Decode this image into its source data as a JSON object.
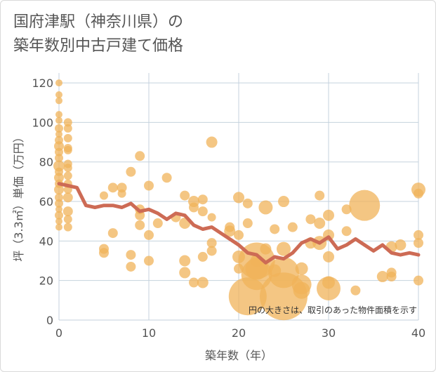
{
  "title_line1": "国府津駅（神奈川県）の",
  "title_line2": "築年数別中古戸建て価格",
  "chart_data": {
    "type": "scatter",
    "xlabel": "築年数（年）",
    "ylabel": "坪（3.3㎡）単価（万円）",
    "xlim": [
      0,
      40
    ],
    "ylim": [
      0,
      125
    ],
    "xticks": [
      0,
      10,
      20,
      30,
      40
    ],
    "yticks": [
      0,
      20,
      40,
      60,
      80,
      100,
      120
    ],
    "grid": true,
    "note": "円の大きさは、取引のあった物件面積を示す",
    "colors": {
      "bubble": "#f0b35a",
      "line": "#cd6b55",
      "grid": "#c5d2dd",
      "axis_text": "#555555"
    },
    "trend": [
      [
        0,
        69
      ],
      [
        1,
        68
      ],
      [
        2,
        67
      ],
      [
        3,
        58
      ],
      [
        4,
        57
      ],
      [
        5,
        58
      ],
      [
        6,
        58
      ],
      [
        7,
        57
      ],
      [
        8,
        59
      ],
      [
        9,
        55
      ],
      [
        10,
        56
      ],
      [
        11,
        54
      ],
      [
        12,
        51
      ],
      [
        13,
        54
      ],
      [
        14,
        53
      ],
      [
        15,
        48
      ],
      [
        16,
        46
      ],
      [
        17,
        47
      ],
      [
        18,
        44
      ],
      [
        19,
        41
      ],
      [
        20,
        38
      ],
      [
        21,
        34
      ],
      [
        22,
        33
      ],
      [
        23,
        29
      ],
      [
        24,
        32
      ],
      [
        25,
        31
      ],
      [
        26,
        34
      ],
      [
        27,
        39
      ],
      [
        28,
        41
      ],
      [
        29,
        39
      ],
      [
        30,
        42
      ],
      [
        31,
        36
      ],
      [
        32,
        38
      ],
      [
        33,
        41
      ],
      [
        34,
        38
      ],
      [
        35,
        35
      ],
      [
        36,
        38
      ],
      [
        37,
        34
      ],
      [
        38,
        33
      ],
      [
        39,
        34
      ],
      [
        40,
        33
      ]
    ],
    "points": [
      [
        0,
        120,
        5
      ],
      [
        0,
        114,
        5
      ],
      [
        0,
        111,
        5
      ],
      [
        0,
        104,
        5
      ],
      [
        0,
        101,
        5
      ],
      [
        0,
        97,
        6
      ],
      [
        0,
        94,
        5
      ],
      [
        0,
        91,
        6
      ],
      [
        0,
        88,
        7
      ],
      [
        0,
        85,
        6
      ],
      [
        0,
        82,
        6
      ],
      [
        0,
        78,
        8
      ],
      [
        0,
        75,
        6
      ],
      [
        0,
        72,
        7
      ],
      [
        0,
        69,
        6
      ],
      [
        0,
        66,
        7
      ],
      [
        0,
        62,
        6
      ],
      [
        0,
        59,
        6
      ],
      [
        0,
        56,
        5
      ],
      [
        0,
        53,
        6
      ],
      [
        0,
        50,
        5
      ],
      [
        0,
        47,
        5
      ],
      [
        1,
        100,
        6
      ],
      [
        1,
        97,
        6
      ],
      [
        1,
        92,
        6
      ],
      [
        1,
        87,
        6
      ],
      [
        1,
        86,
        6
      ],
      [
        1,
        79,
        6
      ],
      [
        1,
        77,
        6
      ],
      [
        1,
        73,
        6
      ],
      [
        1,
        69,
        6
      ],
      [
        1,
        66,
        6
      ],
      [
        1,
        62,
        7
      ],
      [
        1,
        55,
        7
      ],
      [
        1,
        51,
        6
      ],
      [
        1,
        47,
        6
      ],
      [
        5,
        36,
        7
      ],
      [
        5,
        34,
        7
      ],
      [
        5,
        63,
        6
      ],
      [
        6,
        67,
        7
      ],
      [
        6,
        44,
        7
      ],
      [
        7,
        67,
        7
      ],
      [
        7,
        64,
        6
      ],
      [
        8,
        75,
        7
      ],
      [
        8,
        33,
        7
      ],
      [
        8,
        27,
        7
      ],
      [
        9,
        83,
        7
      ],
      [
        9,
        56,
        7
      ],
      [
        9,
        53,
        7
      ],
      [
        9,
        48,
        7
      ],
      [
        10,
        68,
        7
      ],
      [
        10,
        43,
        7
      ],
      [
        10,
        30,
        7
      ],
      [
        11,
        49,
        7
      ],
      [
        12,
        72,
        7
      ],
      [
        13,
        52,
        7
      ],
      [
        14,
        63,
        7
      ],
      [
        14,
        49,
        8
      ],
      [
        14,
        30,
        8
      ],
      [
        14,
        24,
        8
      ],
      [
        15,
        60,
        8
      ],
      [
        15,
        57,
        7
      ],
      [
        15,
        19,
        7
      ],
      [
        16,
        61,
        7
      ],
      [
        16,
        55,
        7
      ],
      [
        16,
        32,
        7
      ],
      [
        16,
        19,
        8
      ],
      [
        17,
        90,
        8
      ],
      [
        17,
        39,
        7
      ],
      [
        17,
        35,
        7
      ],
      [
        17,
        52,
        6
      ],
      [
        19,
        47,
        7
      ],
      [
        19,
        45,
        8
      ],
      [
        20,
        62,
        8
      ],
      [
        20,
        43,
        7
      ],
      [
        20,
        32,
        9
      ],
      [
        20,
        26,
        7
      ],
      [
        21,
        59,
        7
      ],
      [
        21,
        49,
        7
      ],
      [
        21,
        12,
        27
      ],
      [
        22,
        30,
        26
      ],
      [
        22,
        23,
        22
      ],
      [
        22,
        26,
        16
      ],
      [
        22,
        30,
        9
      ],
      [
        23,
        57,
        10
      ],
      [
        23,
        36,
        8
      ],
      [
        24,
        46,
        7
      ],
      [
        24,
        25,
        9
      ],
      [
        25,
        60,
        8
      ],
      [
        25,
        36,
        10
      ],
      [
        25,
        24,
        22
      ],
      [
        25,
        12,
        34
      ],
      [
        26,
        47,
        7
      ],
      [
        27,
        26,
        9
      ],
      [
        27,
        18,
        14
      ],
      [
        27,
        15,
        12
      ],
      [
        28,
        51,
        7
      ],
      [
        28,
        39,
        8
      ],
      [
        29,
        63,
        7
      ],
      [
        29,
        49,
        8
      ],
      [
        29,
        39,
        10
      ],
      [
        30,
        53,
        8
      ],
      [
        30,
        43,
        8
      ],
      [
        30,
        32,
        8
      ],
      [
        30,
        16,
        17
      ],
      [
        30,
        19,
        9
      ],
      [
        32,
        56,
        7
      ],
      [
        32,
        45,
        7
      ],
      [
        33,
        15,
        7
      ],
      [
        34,
        58,
        22
      ],
      [
        36,
        22,
        8
      ],
      [
        37,
        37,
        8
      ],
      [
        37,
        24,
        7
      ],
      [
        37,
        22,
        7
      ],
      [
        38,
        38,
        8
      ],
      [
        40,
        66,
        10
      ],
      [
        40,
        43,
        7
      ],
      [
        40,
        39,
        7
      ],
      [
        40,
        20,
        7
      ],
      [
        40,
        64,
        7
      ]
    ]
  }
}
